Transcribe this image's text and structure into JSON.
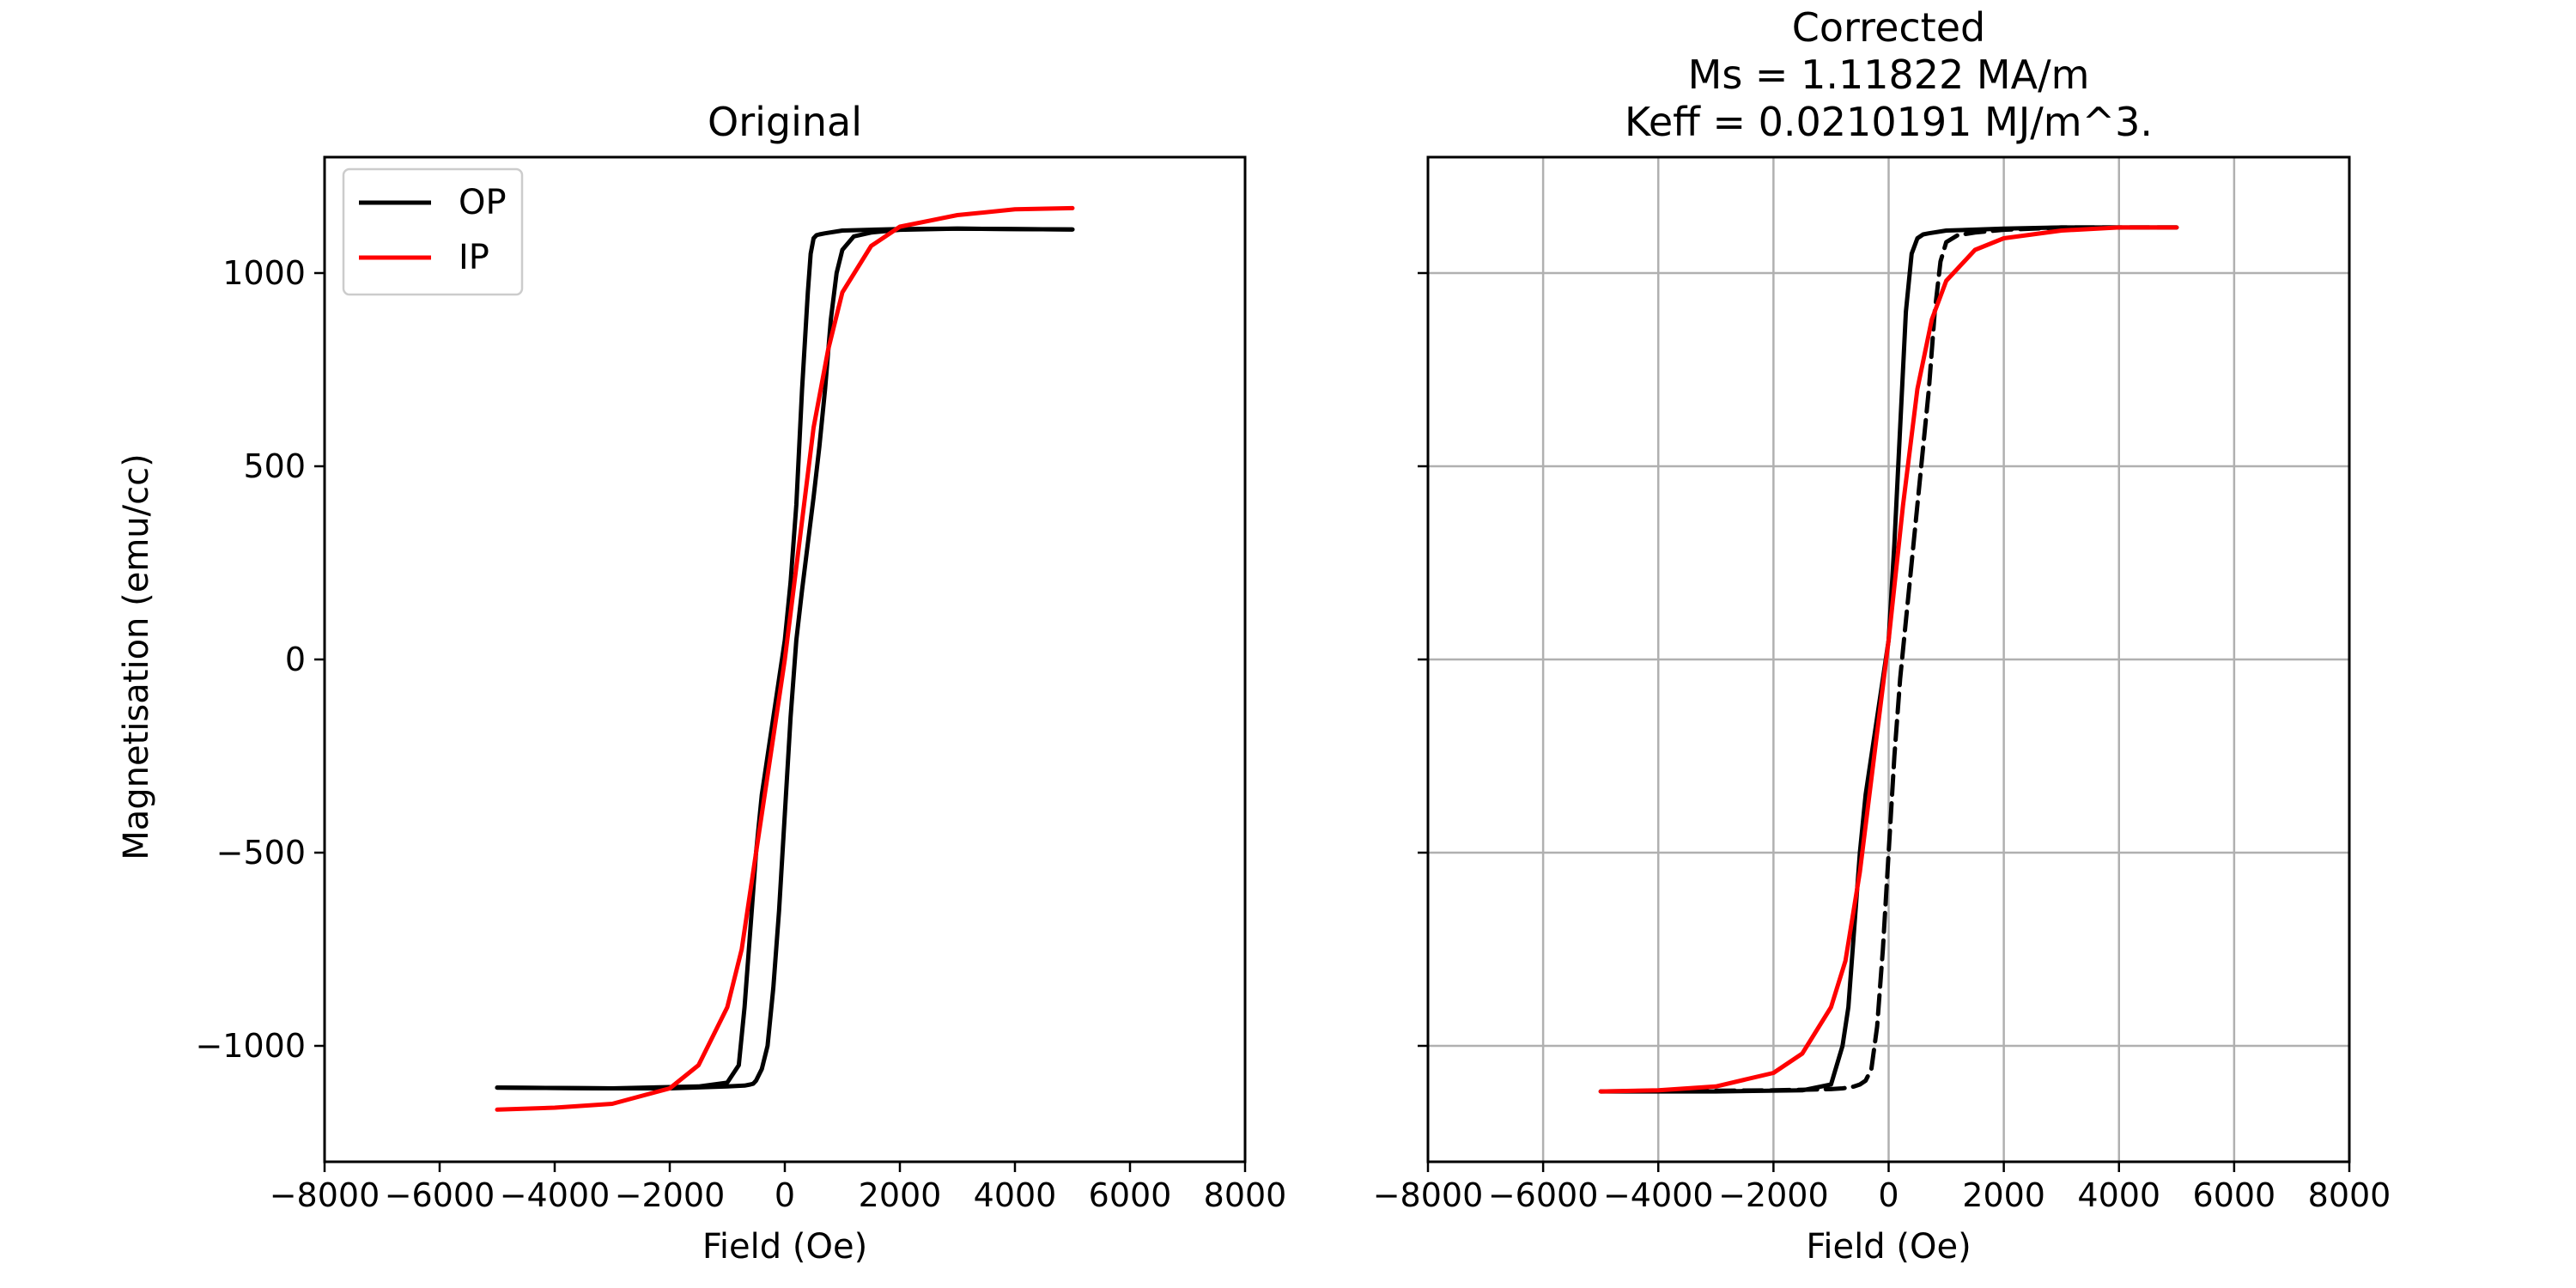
{
  "figure": {
    "ylabel": "Magnetisation (emu/cc)"
  },
  "chart_data": [
    {
      "type": "line",
      "title": "Original",
      "title_lines": [
        "Original"
      ],
      "xlabel": "Field (Oe)",
      "ylabel": "Magnetisation (emu/cc)",
      "xlim": [
        -8000,
        8000
      ],
      "ylim": [
        -1300,
        1300
      ],
      "xticks": [
        -8000,
        -6000,
        -4000,
        -2000,
        0,
        2000,
        4000,
        6000,
        8000
      ],
      "yticks": [
        -1000,
        -500,
        0,
        500,
        1000
      ],
      "xtick_labels": [
        "−8000",
        "−6000",
        "−4000",
        "−2000",
        "0",
        "2000",
        "4000",
        "6000",
        "8000"
      ],
      "ytick_labels": [
        "−1000",
        "−500",
        "0",
        "500",
        "1000"
      ],
      "show_ytick_labels": true,
      "grid": false,
      "legend": {
        "position": "top-left",
        "entries": [
          "OP",
          "IP"
        ]
      },
      "series": [
        {
          "name": "OP",
          "color": "#000000",
          "dash": "solid",
          "x": [
            -5000,
            -3000,
            -1500,
            -1000,
            -800,
            -700,
            -600,
            -500,
            -400,
            -300,
            -200,
            -100,
            0,
            100,
            200,
            300,
            400,
            450,
            500,
            550,
            600,
            700,
            1000,
            2000,
            3000,
            5000
          ],
          "y": [
            -1108,
            -1110,
            -1105,
            -1095,
            -1050,
            -900,
            -700,
            -500,
            -350,
            -250,
            -150,
            -50,
            50,
            200,
            400,
            700,
            950,
            1050,
            1090,
            1098,
            1100,
            1103,
            1110,
            1114,
            1115,
            1113
          ]
        },
        {
          "name": "OP",
          "color": "#000000",
          "dash": "solid",
          "x": [
            5000,
            3000,
            2000,
            1500,
            1200,
            1000,
            900,
            800,
            700,
            600,
            500,
            400,
            300,
            200,
            100,
            0,
            -100,
            -200,
            -300,
            -400,
            -500,
            -550,
            -600,
            -700,
            -1000,
            -2000,
            -3000,
            -5000
          ],
          "y": [
            1113,
            1115,
            1112,
            1105,
            1095,
            1060,
            1000,
            880,
            700,
            550,
            420,
            300,
            180,
            50,
            -150,
            -400,
            -650,
            -850,
            -1000,
            -1060,
            -1090,
            -1098,
            -1100,
            -1103,
            -1105,
            -1110,
            -1110,
            -1108
          ]
        },
        {
          "name": "IP",
          "color": "#ff0000",
          "dash": "solid",
          "x": [
            -5000,
            -4000,
            -3000,
            -2000,
            -1500,
            -1000,
            -750,
            -500,
            -250,
            0,
            250,
            500,
            750,
            1000,
            1500,
            2000,
            3000,
            4000,
            5000
          ],
          "y": [
            -1165,
            -1160,
            -1150,
            -1110,
            -1050,
            -900,
            -750,
            -500,
            -250,
            0,
            300,
            600,
            800,
            950,
            1070,
            1120,
            1150,
            1165,
            1168
          ]
        }
      ]
    },
    {
      "type": "line",
      "title": "Corrected\nMs = 1.11822 MA/m\nKeff = 0.0210191 MJ/m^3.",
      "title_lines": [
        "Corrected",
        "Ms = 1.11822 MA/m",
        "Keff = 0.0210191 MJ/m^3."
      ],
      "xlabel": "Field (Oe)",
      "ylabel": "",
      "xlim": [
        -8000,
        8000
      ],
      "ylim": [
        -1300,
        1300
      ],
      "xticks": [
        -8000,
        -6000,
        -4000,
        -2000,
        0,
        2000,
        4000,
        6000,
        8000
      ],
      "yticks": [
        -1000,
        -500,
        0,
        500,
        1000
      ],
      "xtick_labels": [
        "−8000",
        "−6000",
        "−4000",
        "−2000",
        "0",
        "2000",
        "4000",
        "6000",
        "8000"
      ],
      "ytick_labels": [
        "",
        "",
        "",
        "",
        ""
      ],
      "show_ytick_labels": false,
      "grid": true,
      "legend": null,
      "series": [
        {
          "color": "#000000",
          "dash": "solid",
          "x": [
            -5000,
            -3000,
            -1500,
            -1000,
            -800,
            -700,
            -600,
            -500,
            -400,
            -300,
            -200,
            -100,
            0,
            100,
            200,
            300,
            400,
            500,
            600,
            700,
            1000,
            2000,
            3000,
            5000
          ],
          "y": [
            -1118,
            -1118,
            -1115,
            -1100,
            -1000,
            -900,
            -700,
            -500,
            -350,
            -250,
            -150,
            -50,
            50,
            300,
            600,
            900,
            1050,
            1090,
            1100,
            1103,
            1110,
            1115,
            1118,
            1118
          ]
        },
        {
          "color": "#000000",
          "dash": "dashed",
          "x": [
            5000,
            3000,
            2000,
            1500,
            1200,
            1000,
            900,
            800,
            700,
            600,
            500,
            400,
            300,
            200,
            100,
            0,
            -100,
            -200,
            -300,
            -400,
            -450,
            -500,
            -600,
            -700,
            -800,
            -1000,
            -2000,
            -5000
          ],
          "y": [
            1118,
            1118,
            1112,
            1105,
            1098,
            1080,
            1030,
            900,
            700,
            550,
            400,
            250,
            100,
            -50,
            -250,
            -500,
            -750,
            -950,
            -1060,
            -1090,
            -1095,
            -1100,
            -1105,
            -1108,
            -1110,
            -1112,
            -1115,
            -1118
          ]
        },
        {
          "color": "#ff0000",
          "dash": "solid",
          "x": [
            -5000,
            -4000,
            -3000,
            -2000,
            -1500,
            -1000,
            -750,
            -500,
            -250,
            0,
            250,
            500,
            750,
            1000,
            1500,
            2000,
            3000,
            4000,
            5000
          ],
          "y": [
            -1118,
            -1115,
            -1105,
            -1070,
            -1020,
            -900,
            -780,
            -550,
            -250,
            50,
            400,
            700,
            880,
            980,
            1060,
            1090,
            1110,
            1118,
            1118
          ]
        }
      ]
    }
  ]
}
